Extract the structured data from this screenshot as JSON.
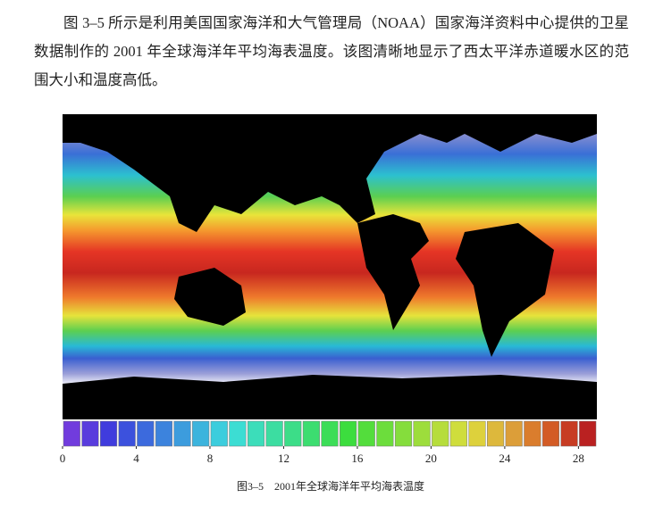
{
  "paragraph": "图 3–5 所示是利用美国国家海洋和大气管理局（NOAA）国家海洋资料中心提供的卫星数据制作的 2001 年全球海洋年平均海表温度。该图清晰地显示了西太平洋赤道暖水区的范围大小和温度高低。",
  "figure": {
    "colorbar": {
      "range": [
        0,
        29
      ],
      "ticks": [
        0,
        4,
        8,
        12,
        16,
        20,
        24,
        28
      ]
    },
    "caption": "图3–5　2001年全球海洋年平均海表温度"
  }
}
